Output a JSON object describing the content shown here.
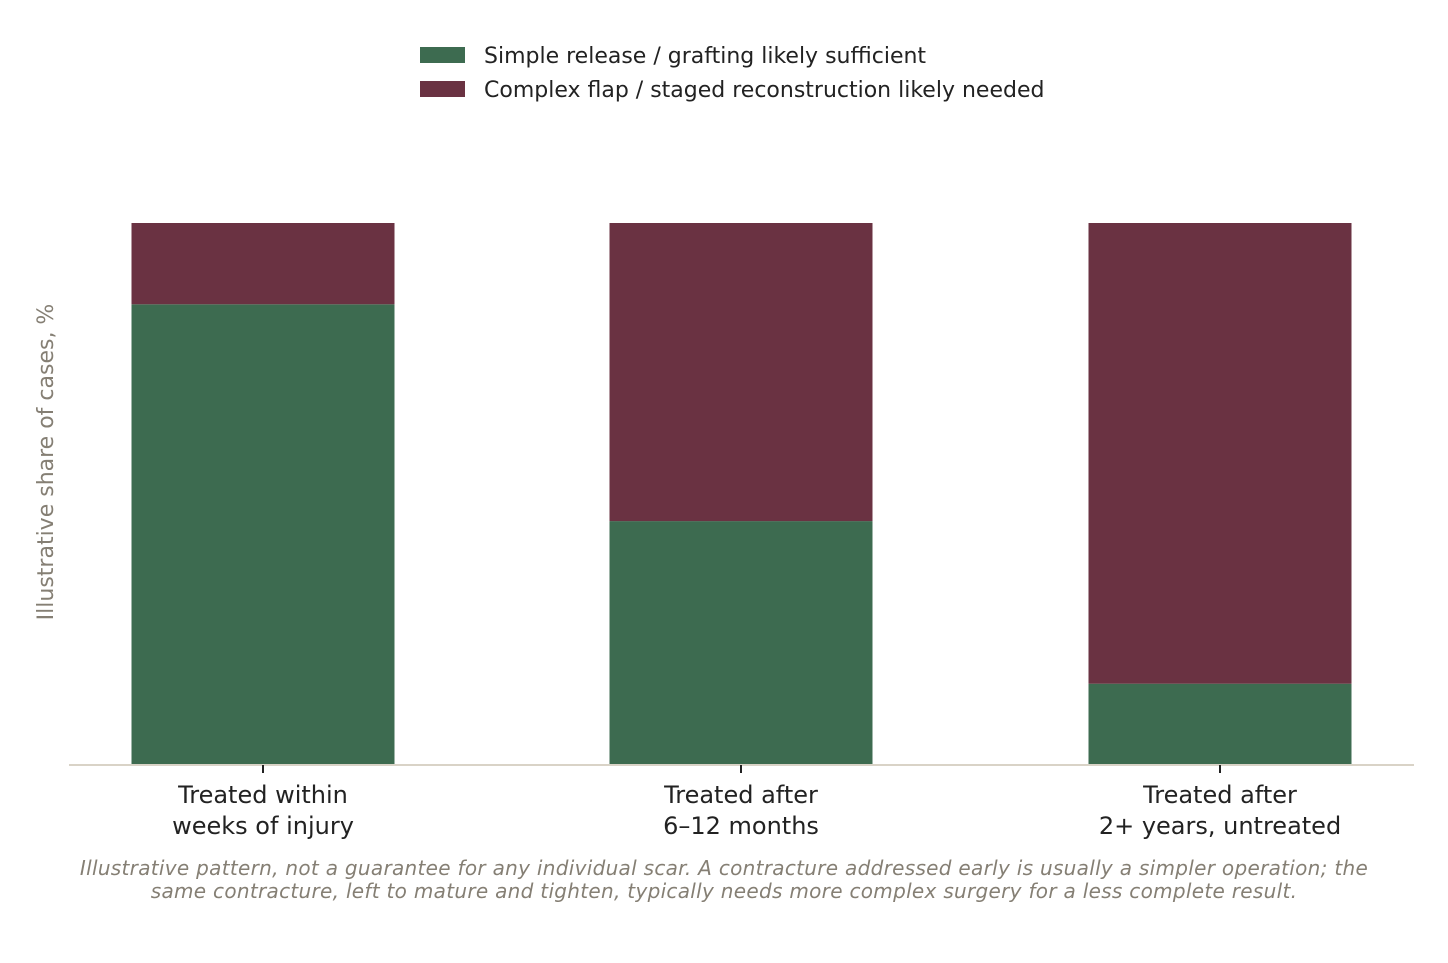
{
  "chart_data": {
    "type": "bar",
    "stacked": true,
    "categories": [
      [
        "Treated within",
        "weeks of injury"
      ],
      [
        "Treated after",
        "6–12 months"
      ],
      [
        "Treated after",
        "2+ years, untreated"
      ]
    ],
    "series": [
      {
        "name": "Simple release / grafting likely sufficient",
        "values": [
          85,
          45,
          15
        ],
        "color": "#3d6b50"
      },
      {
        "name": "Complex flap / staged reconstruction likely needed",
        "values": [
          15,
          55,
          85
        ],
        "color": "#6a3242"
      }
    ],
    "ylabel": "Illustrative share of cases, %",
    "ylim": [
      0,
      100
    ],
    "grid": false,
    "legend_position": "top-center",
    "caption": "Illustrative pattern, not a guarantee for any individual scar. A contracture addressed early is usually a simpler operation; the same contracture, left to mature and tighten, typically needs more complex surgery for a less complete result."
  },
  "colors": {
    "muted_text": "#857f74",
    "axis_line": "#d9d3c7",
    "tick": "#222222"
  }
}
